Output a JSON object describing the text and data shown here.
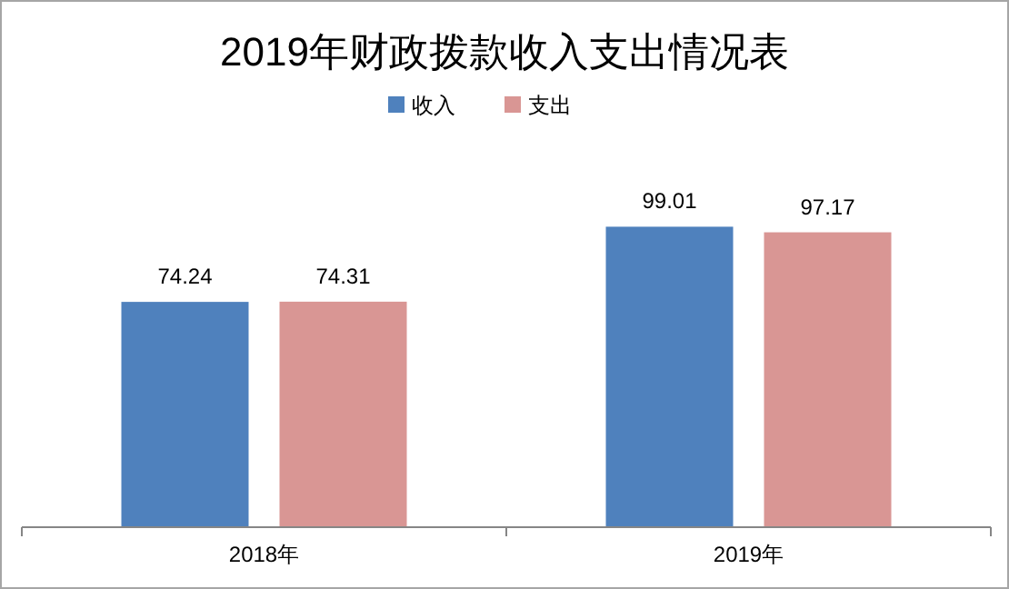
{
  "chart_data": {
    "type": "bar",
    "title": "2019年财政拨款收入支出情况表",
    "categories": [
      "2018年",
      "2019年"
    ],
    "series": [
      {
        "name": "收入",
        "color": "#4f81bd",
        "values": [
          74.24,
          99.01
        ]
      },
      {
        "name": "支出",
        "color": "#d99694",
        "values": [
          74.31,
          97.17
        ]
      }
    ],
    "data_labels": true,
    "legend": "top",
    "grid": false
  }
}
